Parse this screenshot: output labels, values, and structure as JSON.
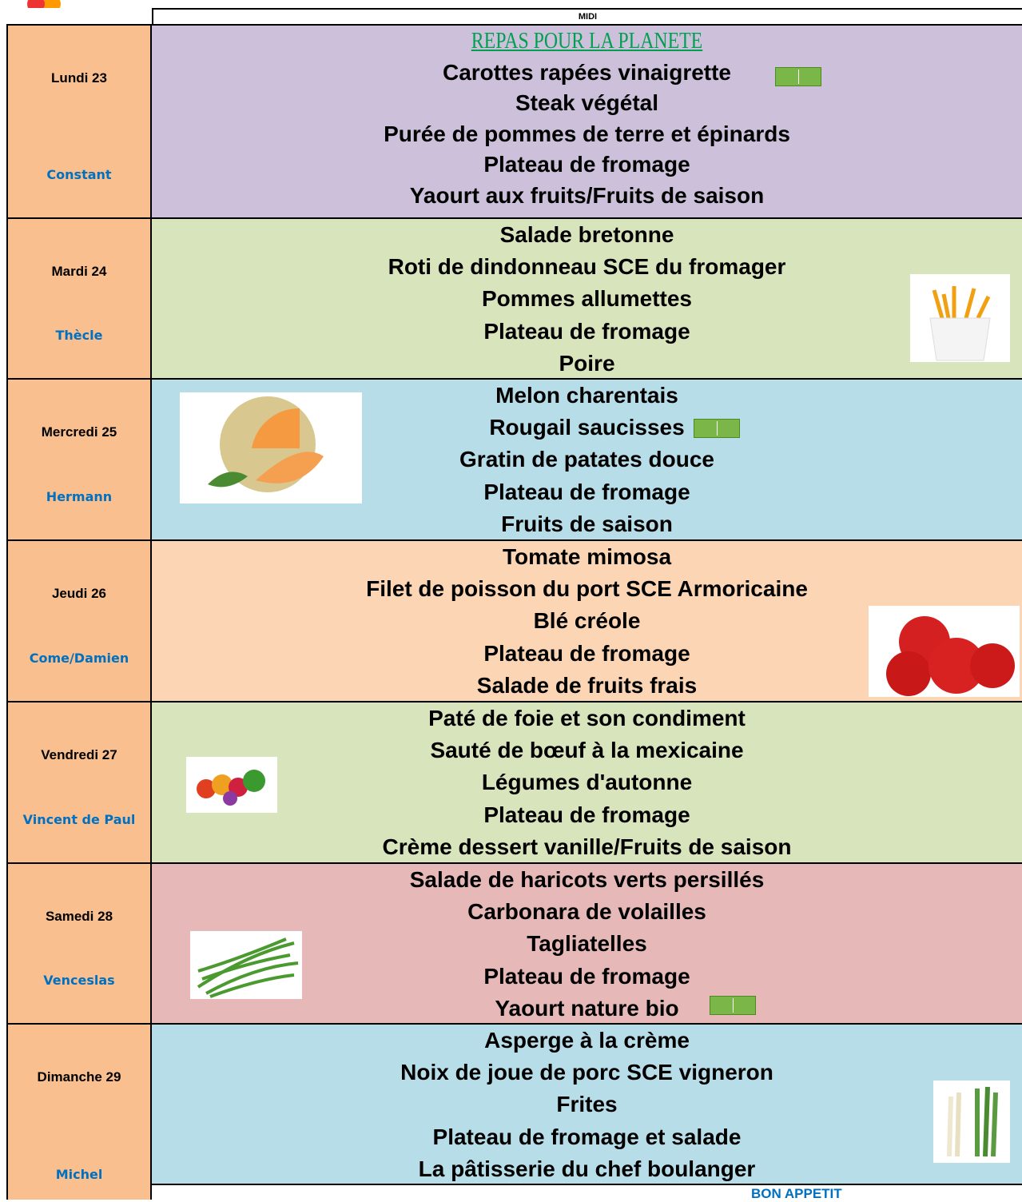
{
  "header": {
    "column": "MIDI"
  },
  "days": [
    {
      "day": "Lundi 23",
      "saint": "Constant",
      "items": [
        "REPAS POUR LA PLANETE",
        "Carottes rapées vinaigrette",
        "Steak végétal",
        "Purée de pommes de terre et épinards",
        "Plateau de fromage",
        "Yaourt aux fruits/Fruits de saison"
      ]
    },
    {
      "day": "Mardi 24",
      "saint": "Thècle",
      "items": [
        "Salade bretonne",
        "Roti de dindonneau SCE du fromager",
        "Pommes allumettes",
        "Plateau de fromage",
        "Poire"
      ]
    },
    {
      "day": "Mercredi 25",
      "saint": "Hermann",
      "items": [
        "Melon charentais",
        "Rougail saucisses",
        "Gratin de patates douce",
        "Plateau de fromage",
        "Fruits de saison"
      ]
    },
    {
      "day": "Jeudi 26",
      "saint": "Come/Damien",
      "items": [
        "Tomate mimosa",
        "Filet de poisson du port SCE Armoricaine",
        "Blé créole",
        "Plateau de fromage",
        "Salade de fruits frais"
      ]
    },
    {
      "day": "Vendredi 27",
      "saint": "Vincent de Paul",
      "items": [
        "Paté de foie et son condiment",
        "Sauté de bœuf à la mexicaine",
        "Légumes d'autonne",
        "Plateau de fromage",
        "Crème dessert vanille/Fruits de saison"
      ]
    },
    {
      "day": "Samedi 28",
      "saint": "Venceslas",
      "items": [
        "Salade de haricots verts persillés",
        "Carbonara de volailles",
        "Tagliatelles",
        "Plateau de fromage",
        "Yaourt nature bio"
      ]
    },
    {
      "day": "Dimanche 29",
      "saint": "Michel",
      "items": [
        "Asperge à la crème",
        "Noix de joue de porc SCE vigneron",
        "Frites",
        "Plateau de fromage et salade",
        "La pâtisserie du chef boulanger"
      ]
    }
  ],
  "footer": "BON APPETIT"
}
